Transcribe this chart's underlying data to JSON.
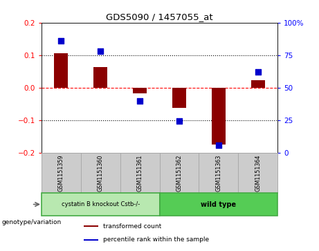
{
  "title": "GDS5090 / 1457055_at",
  "samples": [
    "GSM1151359",
    "GSM1151360",
    "GSM1151361",
    "GSM1151362",
    "GSM1151363",
    "GSM1151364"
  ],
  "bar_values": [
    0.105,
    0.063,
    -0.018,
    -0.063,
    -0.175,
    0.022
  ],
  "dot_values": [
    0.145,
    0.113,
    -0.042,
    -0.102,
    -0.178,
    0.048
  ],
  "bar_color": "#8B0000",
  "dot_color": "#0000CC",
  "ylim": [
    -0.2,
    0.2
  ],
  "y2lim": [
    0,
    100
  ],
  "yticks": [
    -0.2,
    -0.1,
    0.0,
    0.1,
    0.2
  ],
  "y2ticks": [
    0,
    25,
    50,
    75,
    100
  ],
  "y2ticklabels": [
    "0",
    "25",
    "50",
    "75",
    "100%"
  ],
  "hlines": [
    0.1,
    0.0,
    -0.1
  ],
  "hline_styles": [
    "dotted",
    "dashed",
    "dotted"
  ],
  "hline_colors": [
    "black",
    "red",
    "black"
  ],
  "group1_samples": [
    0,
    1,
    2
  ],
  "group2_samples": [
    3,
    4,
    5
  ],
  "group1_label": "cystatin B knockout Cstb-/-",
  "group2_label": "wild type",
  "group1_color": "#b8e8b0",
  "group2_color": "#55cc55",
  "sample_box_color": "#cccccc",
  "sample_box_edge": "#aaaaaa",
  "legend_bar_label": "transformed count",
  "legend_dot_label": "percentile rank within the sample",
  "genotype_label": "genotype/variation",
  "bar_width": 0.35,
  "dot_size": 28
}
